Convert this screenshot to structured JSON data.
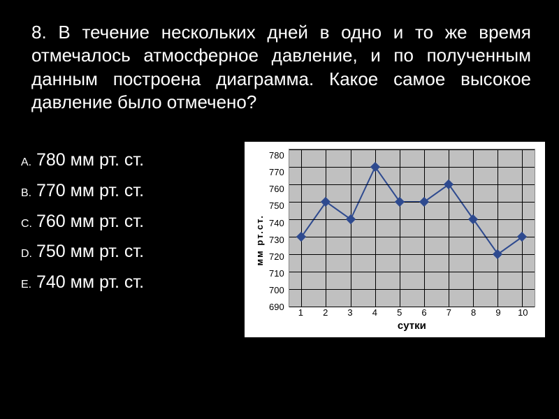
{
  "question": {
    "number": "8.",
    "text": "В течение нескольких дней в одно и то же время отмечалось атмосферное давление, и по полученным данным построена диаграмма. Какое самое высокое давление было отмечено?"
  },
  "answers": [
    {
      "letter": "A.",
      "text": "780 мм рт. ст."
    },
    {
      "letter": "B.",
      "text": "770 мм рт. ст."
    },
    {
      "letter": "C.",
      "text": "760 мм рт. ст."
    },
    {
      "letter": "D.",
      "text": "750 мм рт. ст."
    },
    {
      "letter": "E.",
      "text": "740 мм рт. ст."
    }
  ],
  "chart": {
    "type": "line",
    "x_values": [
      1,
      2,
      3,
      4,
      5,
      6,
      7,
      8,
      9,
      10
    ],
    "y_values": [
      730,
      750,
      740,
      770,
      750,
      750,
      760,
      740,
      720,
      730
    ],
    "yticks": [
      780,
      770,
      760,
      750,
      740,
      730,
      720,
      710,
      700,
      690
    ],
    "ylim": [
      690,
      780
    ],
    "xlabel": "сутки",
    "ylabel": "мм рт.ст.",
    "plot_bg": "#c0c0c0",
    "line_color": "#2e4a8f",
    "marker_color": "#2e4a8f",
    "marker_shape": "diamond",
    "marker_size": 5,
    "line_width": 2,
    "grid_color": "#000000",
    "chart_bg": "#ffffff",
    "text_color": "#000000"
  },
  "colors": {
    "page_bg": "#000000",
    "page_text": "#ffffff"
  }
}
